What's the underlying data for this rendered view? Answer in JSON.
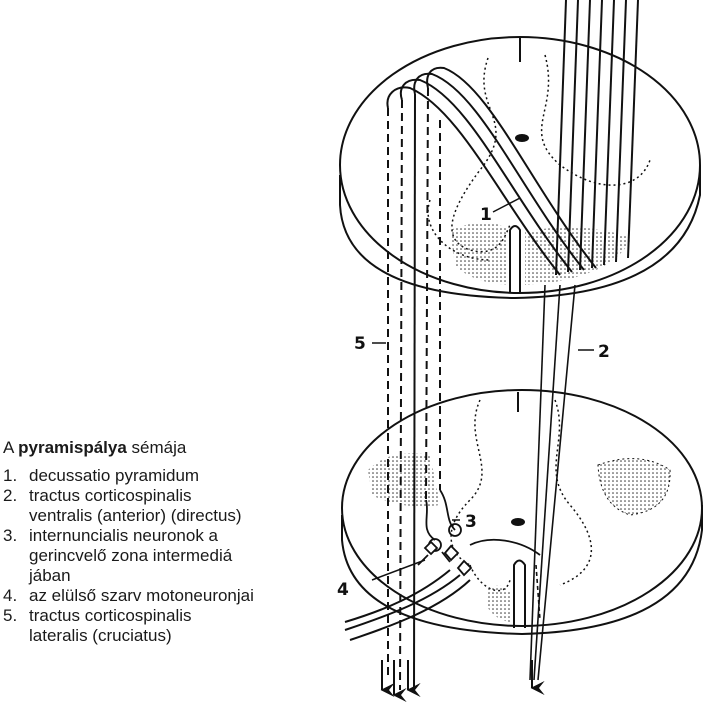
{
  "legend": {
    "title_prefix": "A ",
    "title_bold": "pyramispálya",
    "title_suffix": " sémája",
    "items": [
      {
        "num": "1.",
        "text": "decussatio pyramidum"
      },
      {
        "num": "2.",
        "text": "tractus corticospinalis\nventralis (anterior) (directus)"
      },
      {
        "num": "3.",
        "text": "internuncialis neuronok a\ngerincvelő zona  intermediá\njában"
      },
      {
        "num": "4.",
        "text": "az elülső szarv motoneuronjai"
      },
      {
        "num": "5.",
        "text": "tractus corticospinalis\nlateralis (cruciatus)"
      }
    ]
  },
  "labels": {
    "l1": "1",
    "l2": "2",
    "l3": "3",
    "l4": "4",
    "l5": "5"
  }
}
